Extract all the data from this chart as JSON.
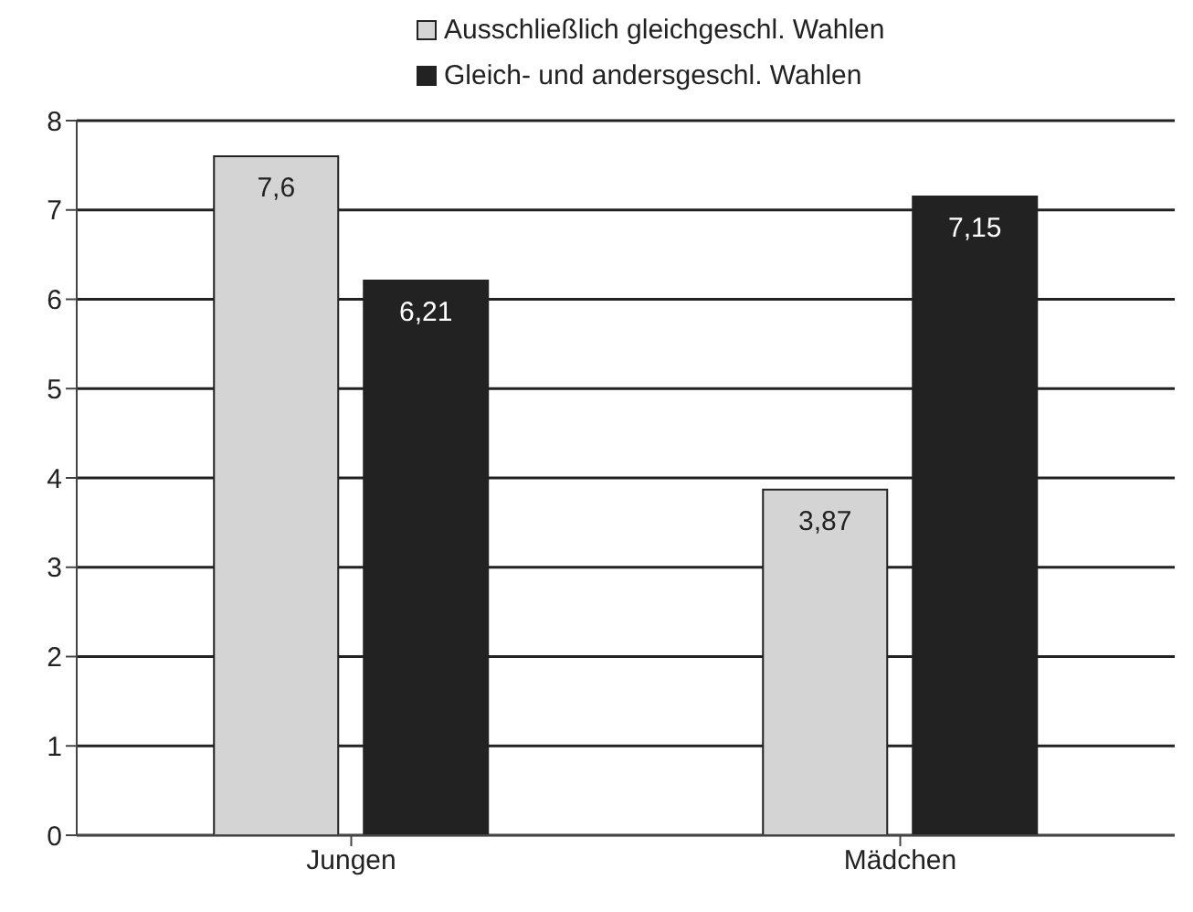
{
  "chart_data": {
    "type": "bar",
    "categories": [
      "Jungen",
      "Mädchen"
    ],
    "series": [
      {
        "name": "Ausschließlich gleichgeschl. Wahlen",
        "color": "#d4d4d4",
        "values": [
          7.6,
          3.87
        ],
        "value_labels": [
          "7,6",
          "3,87"
        ]
      },
      {
        "name": "Gleich- und andersgeschl. Wahlen",
        "color": "#222222",
        "values": [
          6.21,
          7.15
        ],
        "value_labels": [
          "6,21",
          "7,15"
        ]
      }
    ],
    "ylim": [
      0,
      8
    ],
    "yticks": [
      0,
      1,
      2,
      3,
      4,
      5,
      6,
      7,
      8
    ],
    "grid": "y",
    "legend": "top right"
  }
}
